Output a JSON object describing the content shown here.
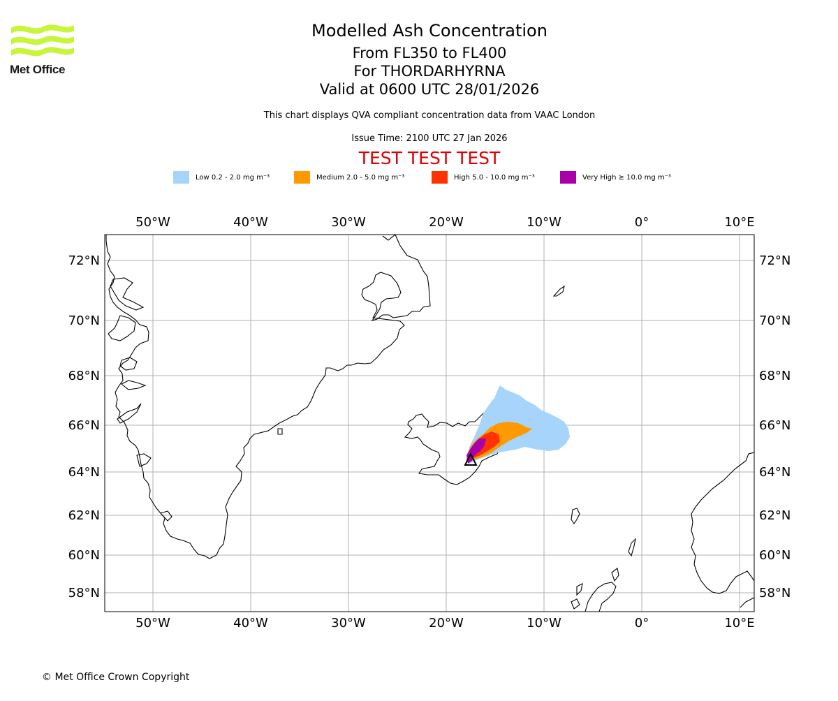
{
  "logo": {
    "text": "Met Office"
  },
  "title": {
    "line1": "Modelled Ash Concentration",
    "line2": "From FL350 to FL400",
    "line3": "For THORDARHYRNA",
    "line4": "Valid at 0600 UTC 28/01/2026"
  },
  "subtitle": {
    "line1": "This chart displays QVA compliant concentration data from VAAC London",
    "issue": "Issue Time: 2100 UTC 27 Jan 2026",
    "test": "TEST TEST TEST"
  },
  "legend": [
    {
      "label": "Low 0.2 - 2.0 mg m⁻³",
      "color": "#a6d4fa"
    },
    {
      "label": "Medium 2.0 - 5.0 mg m⁻³",
      "color": "#ff9900"
    },
    {
      "label": "High 5.0 - 10.0 mg m⁻³",
      "color": "#ff3300"
    },
    {
      "label": "Very High ≥ 10.0 mg m⁻³",
      "color": "#aa00aa"
    }
  ],
  "map": {
    "lon_ticks": [
      "50°W",
      "40°W",
      "30°W",
      "20°W",
      "10°W",
      "0°",
      "10°E"
    ],
    "lat_ticks": [
      "72°N",
      "70°N",
      "68°N",
      "66°N",
      "64°N",
      "62°N",
      "60°N",
      "58°N"
    ],
    "volcano_marker": "volcano-triangle"
  },
  "footer": {
    "copyright": "© Met Office Crown Copyright"
  }
}
